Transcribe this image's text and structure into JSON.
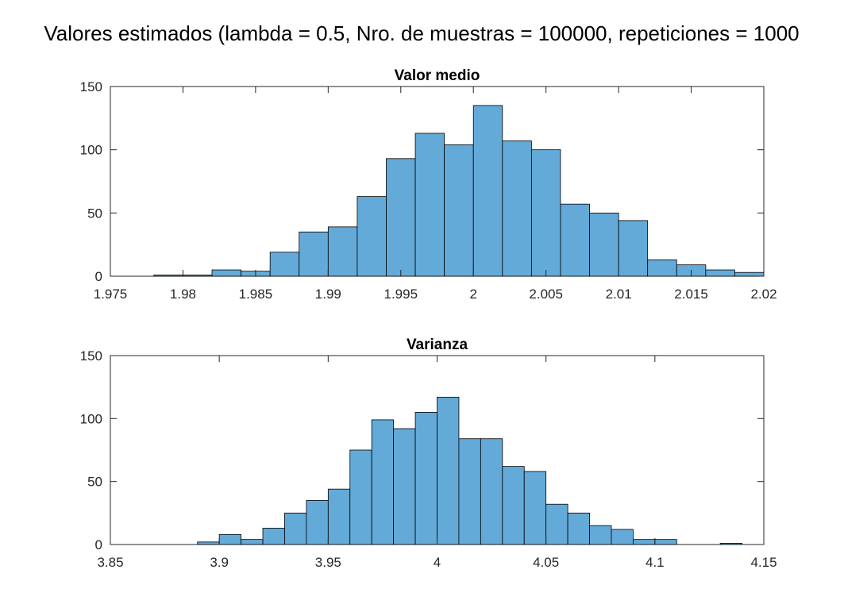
{
  "figure": {
    "suptitle": "Valores estimados (lambda = 0.5, Nro. de muestras = 100000, repeticiones = 1000"
  },
  "colors": {
    "bar_fill": "#63aad9",
    "bar_edge": "#000000",
    "axis": "#262626"
  },
  "chart_data": [
    {
      "type": "bar",
      "subtype": "histogram",
      "title": "Valor medio",
      "xlabel": "",
      "ylabel": "",
      "xlim": [
        1.975,
        2.02
      ],
      "ylim": [
        0,
        150
      ],
      "xticks": [
        1.975,
        1.98,
        1.985,
        1.99,
        1.995,
        2,
        2.005,
        2.01,
        2.015,
        2.02
      ],
      "xtick_labels": [
        "1.975",
        "1.98",
        "1.985",
        "1.99",
        "1.995",
        "2",
        "2.005",
        "2.01",
        "2.015",
        "2.02"
      ],
      "yticks": [
        0,
        50,
        100,
        150
      ],
      "ytick_labels": [
        "0",
        "50",
        "100",
        "150"
      ],
      "bin_edges": [
        1.978,
        1.98,
        1.982,
        1.984,
        1.986,
        1.988,
        1.99,
        1.992,
        1.994,
        1.996,
        1.998,
        2.0,
        2.002,
        2.004,
        2.006,
        2.008,
        2.01,
        2.012,
        2.014,
        2.016,
        2.018,
        2.02
      ],
      "values": [
        1,
        1,
        5,
        4,
        19,
        35,
        39,
        63,
        93,
        113,
        104,
        135,
        107,
        100,
        57,
        50,
        44,
        13,
        9,
        5,
        3
      ],
      "grid": false,
      "legend": false
    },
    {
      "type": "bar",
      "subtype": "histogram",
      "title": "Varianza",
      "xlabel": "",
      "ylabel": "",
      "xlim": [
        3.85,
        4.15
      ],
      "ylim": [
        0,
        150
      ],
      "xticks": [
        3.85,
        3.9,
        3.95,
        4,
        4.05,
        4.1,
        4.15
      ],
      "xtick_labels": [
        "3.85",
        "3.9",
        "3.95",
        "4",
        "4.05",
        "4.1",
        "4.15"
      ],
      "yticks": [
        0,
        50,
        100,
        150
      ],
      "ytick_labels": [
        "0",
        "50",
        "100",
        "150"
      ],
      "bin_edges": [
        3.89,
        3.9,
        3.91,
        3.92,
        3.93,
        3.94,
        3.95,
        3.96,
        3.97,
        3.98,
        3.99,
        4.0,
        4.01,
        4.02,
        4.03,
        4.04,
        4.05,
        4.06,
        4.07,
        4.08,
        4.09,
        4.1,
        4.11,
        4.12,
        4.13,
        4.14
      ],
      "values": [
        2,
        8,
        4,
        13,
        25,
        35,
        44,
        75,
        99,
        92,
        105,
        117,
        84,
        84,
        62,
        58,
        32,
        25,
        15,
        12,
        4,
        4,
        0,
        0,
        1
      ],
      "grid": false,
      "legend": false
    }
  ]
}
